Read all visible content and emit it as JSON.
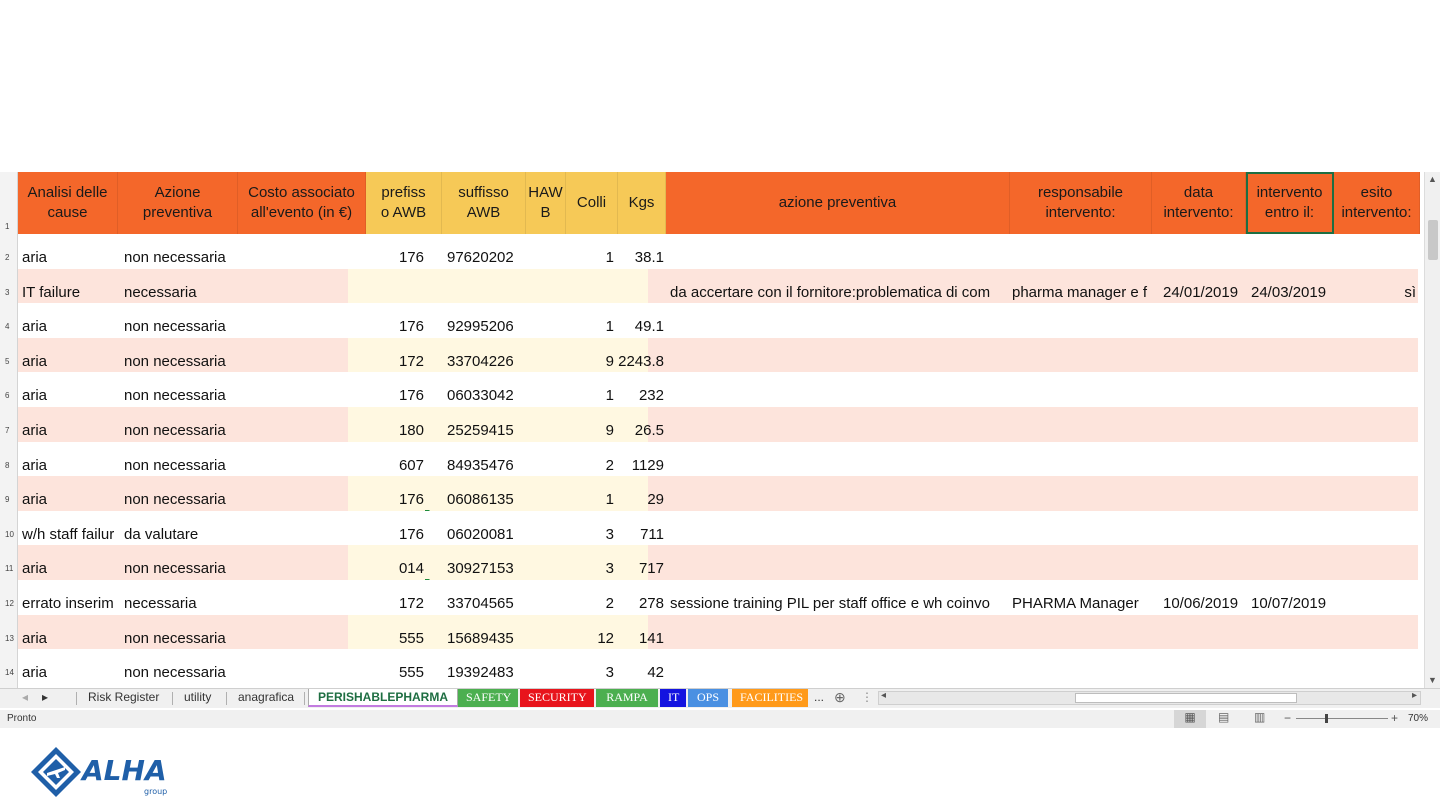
{
  "headers": [
    {
      "label": "Analisi delle\ncause",
      "fill": "orange"
    },
    {
      "label": "Azione\npreventiva",
      "fill": "orange"
    },
    {
      "label": "Costo associato\nall'evento (in €)",
      "fill": "orange"
    },
    {
      "label": "prefiss\no AWB",
      "fill": "yellow"
    },
    {
      "label": "suffisso\nAWB",
      "fill": "yellow"
    },
    {
      "label": "HAW\nB",
      "fill": "yellow"
    },
    {
      "label": "Colli",
      "fill": "yellow"
    },
    {
      "label": "Kgs",
      "fill": "yellow"
    },
    {
      "label": "azione preventiva",
      "fill": "orange"
    },
    {
      "label": "responsabile\nintervento:",
      "fill": "orange"
    },
    {
      "label": "data\nintervento:",
      "fill": "orange"
    },
    {
      "label": "intervento\nentro il:",
      "fill": "orange"
    },
    {
      "label": "esito\nintervento:",
      "fill": "orange"
    }
  ],
  "header_row_number": "1",
  "rows": [
    {
      "n": "2",
      "analisi": "aria",
      "azione": "non necessaria",
      "prefisso": "176",
      "suffisso": "97620202",
      "colli": "1",
      "kgs": "38.1",
      "azione_prev": "",
      "responsabile": "",
      "data": "",
      "entro": "",
      "esito": ""
    },
    {
      "n": "3",
      "analisi": "IT failure",
      "azione": "necessaria",
      "prefisso": "",
      "suffisso": "",
      "colli": "",
      "kgs": "",
      "azione_prev": "da accertare con il fornitore:problematica di com",
      "responsabile": "pharma manager e f",
      "data": "24/01/2019",
      "entro": "24/03/2019",
      "esito": "sì"
    },
    {
      "n": "4",
      "analisi": "aria",
      "azione": "non necessaria",
      "prefisso": "176",
      "suffisso": "92995206",
      "colli": "1",
      "kgs": "49.1",
      "azione_prev": "",
      "responsabile": "",
      "data": "",
      "entro": "",
      "esito": ""
    },
    {
      "n": "5",
      "analisi": "aria",
      "azione": "non necessaria",
      "prefisso": "172",
      "suffisso": "33704226",
      "colli": "9",
      "kgs": "2243.8",
      "azione_prev": "",
      "responsabile": "",
      "data": "",
      "entro": "",
      "esito": ""
    },
    {
      "n": "6",
      "analisi": "aria",
      "azione": "non necessaria",
      "prefisso": "176",
      "suffisso": "06033042",
      "colli": "1",
      "kgs": "232",
      "azione_prev": "",
      "responsabile": "",
      "data": "",
      "entro": "",
      "esito": ""
    },
    {
      "n": "7",
      "analisi": "aria",
      "azione": "non necessaria",
      "prefisso": "180",
      "suffisso": "25259415",
      "colli": "9",
      "kgs": "26.5",
      "azione_prev": "",
      "responsabile": "",
      "data": "",
      "entro": "",
      "esito": ""
    },
    {
      "n": "8",
      "analisi": "aria",
      "azione": "non necessaria",
      "prefisso": "607",
      "suffisso": "84935476",
      "colli": "2",
      "kgs": "1129",
      "azione_prev": "",
      "responsabile": "",
      "data": "",
      "entro": "",
      "esito": ""
    },
    {
      "n": "9",
      "analisi": "aria",
      "azione": "non necessaria",
      "prefisso": "176",
      "suffisso": "06086135",
      "colli": "1",
      "kgs": "29",
      "azione_prev": "",
      "responsabile": "",
      "data": "",
      "entro": "",
      "esito": ""
    },
    {
      "n": "10",
      "analisi": "w/h staff failur",
      "azione": "da valutare",
      "prefisso": "176",
      "suffisso": "06020081",
      "colli": "3",
      "kgs": "711",
      "azione_prev": "",
      "responsabile": "",
      "data": "",
      "entro": "",
      "esito": ""
    },
    {
      "n": "11",
      "analisi": "aria",
      "azione": "non necessaria",
      "prefisso": "014",
      "suffisso": "30927153",
      "colli": "3",
      "kgs": "717",
      "azione_prev": "",
      "responsabile": "",
      "data": "",
      "entro": "",
      "esito": ""
    },
    {
      "n": "12",
      "analisi": "errato inserim",
      "azione": "necessaria",
      "prefisso": "172",
      "suffisso": "33704565",
      "colli": "2",
      "kgs": "278",
      "azione_prev": "sessione training PIL per staff office e wh coinvo",
      "responsabile": "PHARMA Manager",
      "data": "10/06/2019",
      "entro": "10/07/2019",
      "esito": ""
    },
    {
      "n": "13",
      "analisi": "aria",
      "azione": "non necessaria",
      "prefisso": "555",
      "suffisso": "15689435",
      "colli": "12",
      "kgs": "141",
      "azione_prev": "",
      "responsabile": "",
      "data": "",
      "entro": "",
      "esito": ""
    },
    {
      "n": "14",
      "analisi": "aria",
      "azione": "non necessaria",
      "prefisso": "555",
      "suffisso": "19392483",
      "colli": "3",
      "kgs": "42",
      "azione_prev": "",
      "responsabile": "",
      "data": "",
      "entro": "",
      "esito": ""
    }
  ],
  "sheet_tabs": [
    {
      "label": "Risk Register",
      "color": ""
    },
    {
      "label": "utility",
      "color": ""
    },
    {
      "label": "anagrafica",
      "color": ""
    },
    {
      "label": "PERISHABLEPHARMA",
      "color": "",
      "active": true
    },
    {
      "label": "SAFETY",
      "color": "#4caf50"
    },
    {
      "label": "SECURITY",
      "color": "#e8141c"
    },
    {
      "label": "RAMPA",
      "color": "#4caf50"
    },
    {
      "label": "IT",
      "color": "#1414e0"
    },
    {
      "label": "OPS",
      "color": "#4a90e2"
    },
    {
      "label": "FACILITIES",
      "color": "#ff9a1a"
    }
  ],
  "tabs_more": "...",
  "status_text": "Pronto",
  "zoom": "70%",
  "logo": {
    "name": "ALHA",
    "sub": "group"
  },
  "colors": {
    "header_orange": "#f4672a",
    "header_yellow": "#f6c957",
    "row_pink": "#fde4dc",
    "cream": "#fff8e1"
  }
}
